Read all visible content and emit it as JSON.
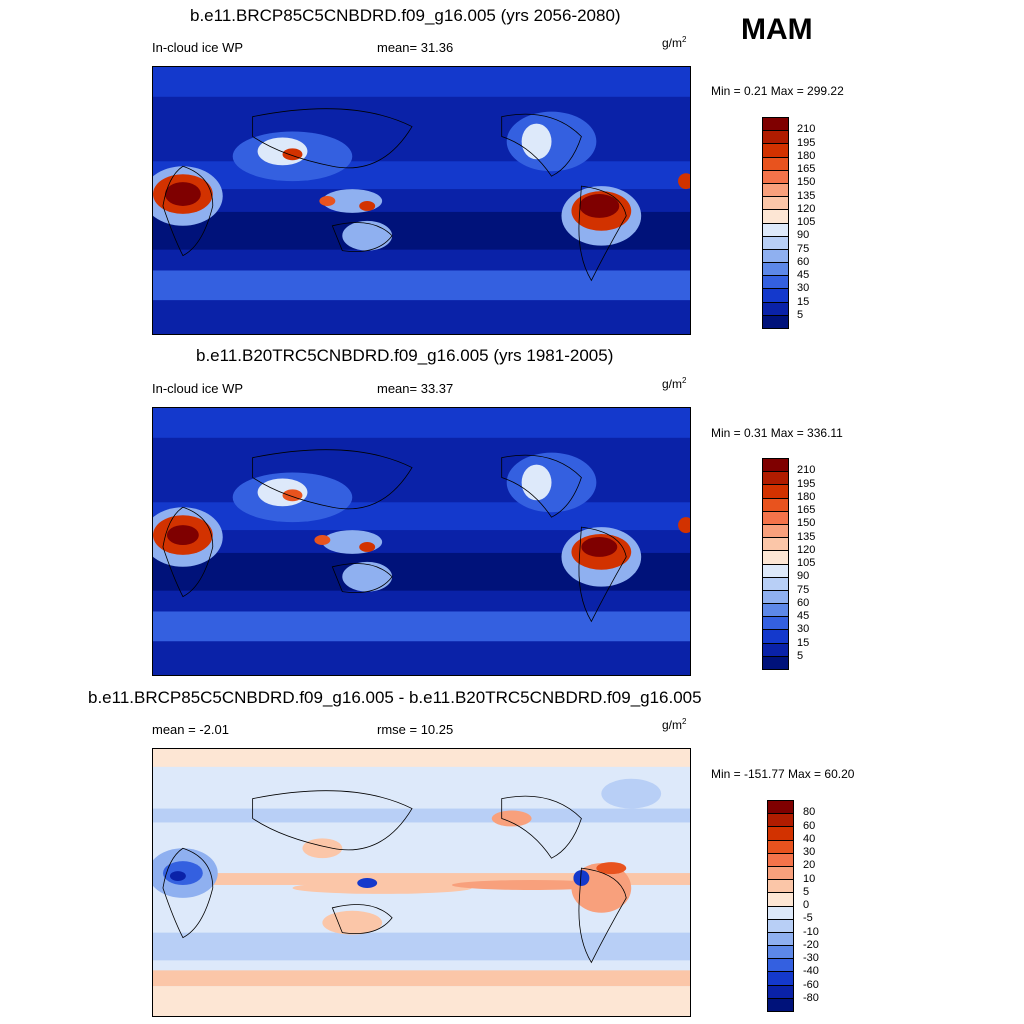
{
  "season": "MAM",
  "units_base": "g/m",
  "units_exp": "2",
  "panels": [
    {
      "title": "b.e11.BRCP85C5CNBDRD.f09_g16.005 (yrs 2056-2080)",
      "left_label": "In-cloud ice WP",
      "center_label": "mean=  31.36",
      "minmax": "Min =   0.21 Max = 299.22"
    },
    {
      "title": "b.e11.B20TRC5CNBDRD.f09_g16.005 (yrs 1981-2005)",
      "left_label": "In-cloud ice WP",
      "center_label": "mean=  33.37",
      "minmax": "Min =   0.31 Max = 336.11"
    },
    {
      "title": "b.e11.BRCP85C5CNBDRD.f09_g16.005 - b.e11.B20TRC5CNBDRD.f09_g16.005",
      "left_label": "mean =  -2.01",
      "center_label": "rmse =  10.25",
      "minmax": "Min = -151.77 Max =  60.20"
    }
  ],
  "colorbar_abs": {
    "labels": [
      "210",
      "195",
      "180",
      "165",
      "150",
      "135",
      "120",
      "105",
      "90",
      "75",
      "60",
      "45",
      "30",
      "15",
      "5"
    ],
    "colors": [
      "#7f0000",
      "#b01c00",
      "#d23200",
      "#e8531e",
      "#f4734a",
      "#f8a07c",
      "#fbc6a8",
      "#fde6d4",
      "#dde9fa",
      "#b8cff6",
      "#8fb0f0",
      "#5d88e8",
      "#3460e0",
      "#1439cc",
      "#0a22a8",
      "#00127a"
    ]
  },
  "colorbar_diff": {
    "labels": [
      "80",
      "60",
      "40",
      "30",
      "20",
      "10",
      "5",
      "0",
      "-5",
      "-10",
      "-20",
      "-30",
      "-40",
      "-60",
      "-80"
    ],
    "colors": [
      "#7f0000",
      "#b01c00",
      "#d23200",
      "#e8531e",
      "#f4734a",
      "#f8a07c",
      "#fbc6a8",
      "#fde6d4",
      "#dde9fa",
      "#b8cff6",
      "#8fb0f0",
      "#5d88e8",
      "#3460e0",
      "#1439cc",
      "#0a22a8",
      "#00127a"
    ]
  }
}
